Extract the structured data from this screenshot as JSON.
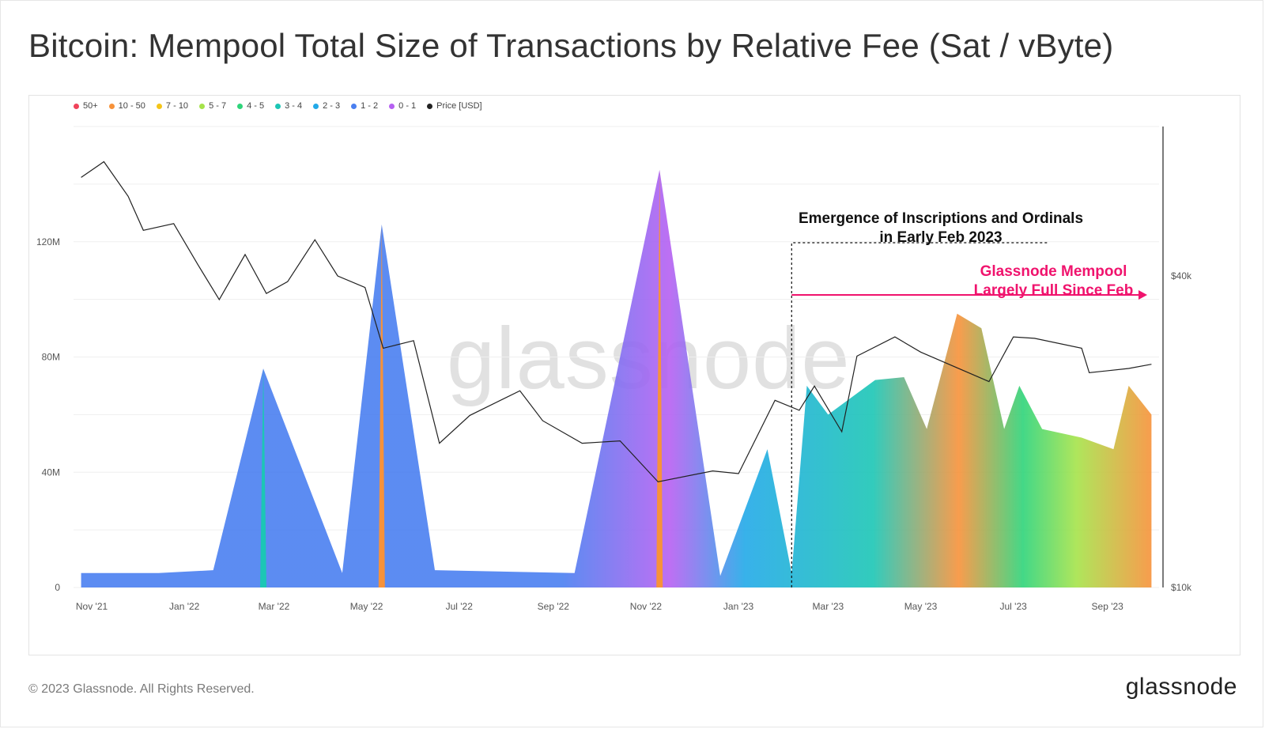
{
  "title": "Bitcoin: Mempool Total Size of Transactions by Relative Fee (Sat / vByte)",
  "watermark": "glassnode",
  "footer": {
    "copyright": "© 2023 Glassnode. All Rights Reserved.",
    "logo": "glassnode"
  },
  "annotations": {
    "inscriptions_line1": "Emergence of Inscriptions and Ordinals",
    "inscriptions_line2": "in Early Feb 2023",
    "mempool_line1": "Glassnode Mempool",
    "mempool_line2": "Largely Full Since Feb"
  },
  "chart_data": {
    "type": "area",
    "title": "Bitcoin: Mempool Total Size of Transactions by Relative Fee (Sat / vByte)",
    "legend": [
      {
        "name": "50+",
        "color": "#f0435a"
      },
      {
        "name": "10 - 50",
        "color": "#f7923a"
      },
      {
        "name": "7 - 10",
        "color": "#f5c518"
      },
      {
        "name": "5 - 7",
        "color": "#a6e34a"
      },
      {
        "name": "4 - 5",
        "color": "#2fd47a"
      },
      {
        "name": "3 - 4",
        "color": "#1cc6b5"
      },
      {
        "name": "2 - 3",
        "color": "#22a9e8"
      },
      {
        "name": "1 - 2",
        "color": "#4a7ff0"
      },
      {
        "name": "0 - 1",
        "color": "#b660f2"
      },
      {
        "name": "Price [USD]",
        "color": "#222222"
      }
    ],
    "legend_position": "top-left",
    "x_ticks": [
      "Nov '21",
      "Jan '22",
      "Mar '22",
      "May '22",
      "Jul '22",
      "Sep '22",
      "Nov '22",
      "Jan '23",
      "Mar '23",
      "May '23",
      "Jul '23",
      "Sep '23"
    ],
    "y_left": {
      "ticks": [
        "0",
        "40M",
        "80M",
        "120M"
      ],
      "values": [
        0,
        40000000,
        80000000,
        120000000
      ],
      "range": [
        0,
        160000000
      ]
    },
    "y_right": {
      "ticks": [
        "$10k",
        "$40k"
      ],
      "values": [
        10000,
        40000
      ],
      "scale": "log"
    },
    "grid": true,
    "price_usd": [
      {
        "x": "2021-10-25",
        "y": 62000
      },
      {
        "x": "2021-11-09",
        "y": 66500
      },
      {
        "x": "2021-11-25",
        "y": 57000
      },
      {
        "x": "2021-12-05",
        "y": 49000
      },
      {
        "x": "2021-12-25",
        "y": 50500
      },
      {
        "x": "2022-01-10",
        "y": 42000
      },
      {
        "x": "2022-01-24",
        "y": 36000
      },
      {
        "x": "2022-02-10",
        "y": 44000
      },
      {
        "x": "2022-02-24",
        "y": 37000
      },
      {
        "x": "2022-03-10",
        "y": 39000
      },
      {
        "x": "2022-03-28",
        "y": 47000
      },
      {
        "x": "2022-04-12",
        "y": 40000
      },
      {
        "x": "2022-04-30",
        "y": 38000
      },
      {
        "x": "2022-05-12",
        "y": 29000
      },
      {
        "x": "2022-06-01",
        "y": 30000
      },
      {
        "x": "2022-06-18",
        "y": 19000
      },
      {
        "x": "2022-07-08",
        "y": 21500
      },
      {
        "x": "2022-08-10",
        "y": 24000
      },
      {
        "x": "2022-08-25",
        "y": 21000
      },
      {
        "x": "2022-09-20",
        "y": 19000
      },
      {
        "x": "2022-10-15",
        "y": 19200
      },
      {
        "x": "2022-11-09",
        "y": 16000
      },
      {
        "x": "2022-12-15",
        "y": 16800
      },
      {
        "x": "2023-01-01",
        "y": 16600
      },
      {
        "x": "2023-01-25",
        "y": 23000
      },
      {
        "x": "2023-02-10",
        "y": 22000
      },
      {
        "x": "2023-02-20",
        "y": 24500
      },
      {
        "x": "2023-03-10",
        "y": 20000
      },
      {
        "x": "2023-03-20",
        "y": 28000
      },
      {
        "x": "2023-04-14",
        "y": 30500
      },
      {
        "x": "2023-05-01",
        "y": 28500
      },
      {
        "x": "2023-06-15",
        "y": 25000
      },
      {
        "x": "2023-07-01",
        "y": 30500
      },
      {
        "x": "2023-07-15",
        "y": 30300
      },
      {
        "x": "2023-08-15",
        "y": 29000
      },
      {
        "x": "2023-08-20",
        "y": 26000
      },
      {
        "x": "2023-09-15",
        "y": 26500
      },
      {
        "x": "2023-09-30",
        "y": 27000
      }
    ],
    "mempool_total": [
      {
        "x": "2021-10-25",
        "y": 5000000
      },
      {
        "x": "2021-12-15",
        "y": 5000000
      },
      {
        "x": "2022-01-20",
        "y": 6000000
      },
      {
        "x": "2022-02-22",
        "y": 76000000
      },
      {
        "x": "2022-04-15",
        "y": 5000000
      },
      {
        "x": "2022-05-11",
        "y": 126000000
      },
      {
        "x": "2022-06-15",
        "y": 6000000
      },
      {
        "x": "2022-09-15",
        "y": 5000000
      },
      {
        "x": "2022-11-10",
        "y": 145000000
      },
      {
        "x": "2022-12-20",
        "y": 4000000
      },
      {
        "x": "2023-01-20",
        "y": 48000000
      },
      {
        "x": "2023-02-05",
        "y": 5000000
      },
      {
        "x": "2023-02-15",
        "y": 70000000
      },
      {
        "x": "2023-03-01",
        "y": 60000000
      },
      {
        "x": "2023-04-01",
        "y": 72000000
      },
      {
        "x": "2023-04-20",
        "y": 73000000
      },
      {
        "x": "2023-05-05",
        "y": 55000000
      },
      {
        "x": "2023-05-25",
        "y": 95000000
      },
      {
        "x": "2023-06-10",
        "y": 90000000
      },
      {
        "x": "2023-06-25",
        "y": 55000000
      },
      {
        "x": "2023-07-05",
        "y": 70000000
      },
      {
        "x": "2023-07-20",
        "y": 55000000
      },
      {
        "x": "2023-08-15",
        "y": 52000000
      },
      {
        "x": "2023-09-05",
        "y": 48000000
      },
      {
        "x": "2023-09-15",
        "y": 70000000
      },
      {
        "x": "2023-09-30",
        "y": 60000000
      }
    ],
    "spikes": [
      {
        "x": "2022-02-22",
        "y": 76000000,
        "band": "3 - 4"
      },
      {
        "x": "2022-05-11",
        "y": 126000000,
        "band": "10 - 50"
      },
      {
        "x": "2022-11-10",
        "y": 145000000,
        "band": "10 - 50"
      }
    ]
  }
}
